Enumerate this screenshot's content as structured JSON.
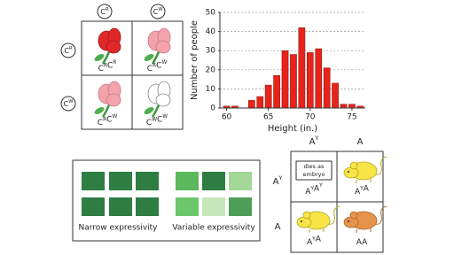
{
  "snapdragon_square": {
    "col_headers": [
      {
        "letter": "C",
        "sup": "R"
      },
      {
        "letter": "C",
        "sup": "W"
      }
    ],
    "row_headers": [
      {
        "letter": "C",
        "sup": "R"
      },
      {
        "letter": "C",
        "sup": "W"
      }
    ],
    "cells": [
      [
        {
          "letter": "C",
          "sup": "R"
        },
        {
          "letter": "C",
          "sup": "R"
        }
      ],
      [
        {
          "letter": "C",
          "sup": "R"
        },
        {
          "letter": "C",
          "sup": "W"
        }
      ],
      [
        {
          "letter": "C",
          "sup": "R"
        },
        {
          "letter": "C",
          "sup": "W"
        }
      ],
      [
        {
          "letter": "C",
          "sup": "W"
        },
        {
          "letter": "C",
          "sup": "W"
        }
      ]
    ]
  },
  "chart_data": {
    "type": "histogram",
    "ylabel": "Number of people",
    "xlabel": "Height (in.)",
    "bins": [
      59.5,
      60.5,
      61.5,
      62.5,
      63.5,
      64.5,
      65.5,
      66.5,
      67.5,
      68.5,
      69.5,
      70.5,
      71.5,
      72.5,
      73.5,
      74.5,
      75.5,
      76.5
    ],
    "values": [
      1,
      1,
      0,
      4,
      6,
      12,
      17,
      30,
      28,
      42,
      29,
      31,
      21,
      13,
      2,
      2,
      1
    ],
    "color": "#e8231a",
    "xlim": [
      59.2,
      76.6
    ],
    "ylim": [
      0,
      50
    ],
    "xticks": [
      60,
      65,
      70,
      75
    ],
    "yticks": [
      0,
      10,
      20,
      30,
      40,
      50
    ],
    "grid": true
  },
  "expressivity": {
    "narrow_label": "Narrow expressivity",
    "variable_label": "Variable expressivity"
  },
  "mouse_square": {
    "col_headers": [
      {
        "letter": "A",
        "sup": "Y"
      },
      {
        "letter": "A"
      }
    ],
    "row_headers": [
      {
        "letter": "A",
        "sup": "Y"
      },
      {
        "letter": "A"
      }
    ],
    "note": [
      "dies as",
      "embryo"
    ],
    "cells": [
      [
        {
          "letter": "A",
          "sup": "Y"
        },
        {
          "letter": "A",
          "sup": "Y"
        }
      ],
      [
        {
          "letter": "A",
          "sup": "Y"
        },
        {
          "letter": "A"
        }
      ],
      [
        {
          "letter": "A",
          "sup": "Y"
        },
        {
          "letter": "A"
        }
      ],
      [
        {
          "letter": "A"
        },
        {
          "letter": "A"
        }
      ]
    ]
  }
}
